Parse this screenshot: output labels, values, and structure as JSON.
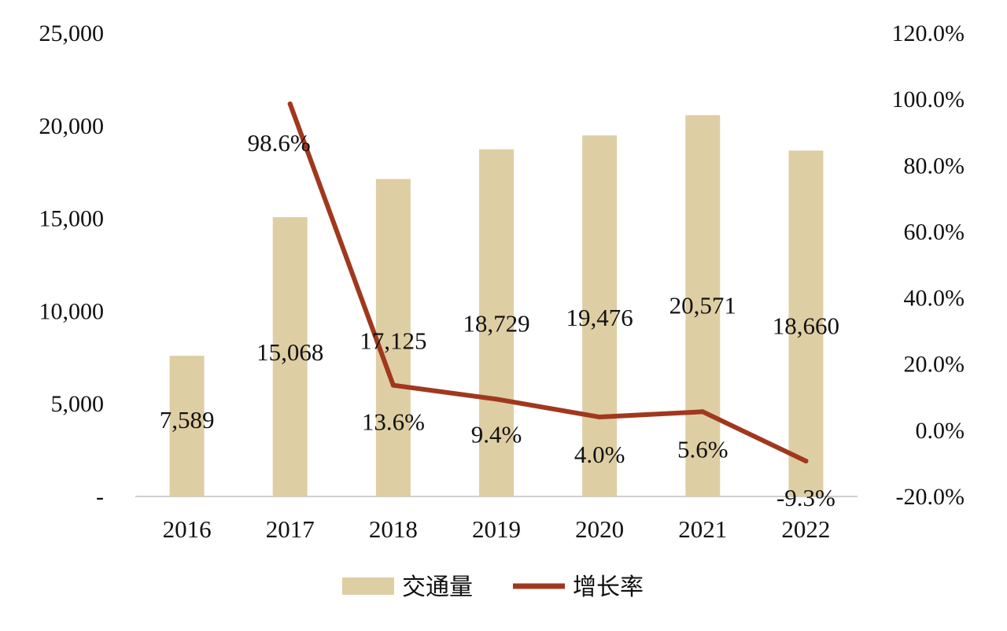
{
  "chart_data": {
    "type": "bar+line",
    "categories": [
      "2016",
      "2017",
      "2018",
      "2019",
      "2020",
      "2021",
      "2022"
    ],
    "series": [
      {
        "name": "交通量",
        "type": "bar",
        "axis": "left",
        "values": [
          7589,
          15068,
          17125,
          18729,
          19476,
          20571,
          18660
        ],
        "labels": [
          "7,589",
          "15,068",
          "17,125",
          "18,729",
          "19,476",
          "20,571",
          "18,660"
        ],
        "color": "#decea3"
      },
      {
        "name": "增长率",
        "type": "line",
        "axis": "right",
        "values": [
          null,
          98.6,
          13.6,
          9.4,
          4.0,
          5.6,
          -9.3
        ],
        "labels": [
          "",
          "98.6%",
          "13.6%",
          "9.4%",
          "4.0%",
          "5.6%",
          "-9.3%"
        ],
        "color": "#a0381e"
      }
    ],
    "y_left": {
      "min": 0,
      "max": 25000,
      "ticks": [
        0,
        5000,
        10000,
        15000,
        20000,
        25000
      ],
      "tick_labels": [
        "-",
        "5,000",
        "10,000",
        "15,000",
        "20,000",
        "25,000"
      ]
    },
    "y_right": {
      "min": -20,
      "max": 120,
      "ticks": [
        -20,
        0,
        20,
        40,
        60,
        80,
        100,
        120
      ],
      "tick_labels": [
        "-20.0%",
        "0.0%",
        "20.0%",
        "40.0%",
        "60.0%",
        "80.0%",
        "100.0%",
        "120.0%"
      ]
    },
    "grid": false,
    "legend_position": "bottom"
  }
}
